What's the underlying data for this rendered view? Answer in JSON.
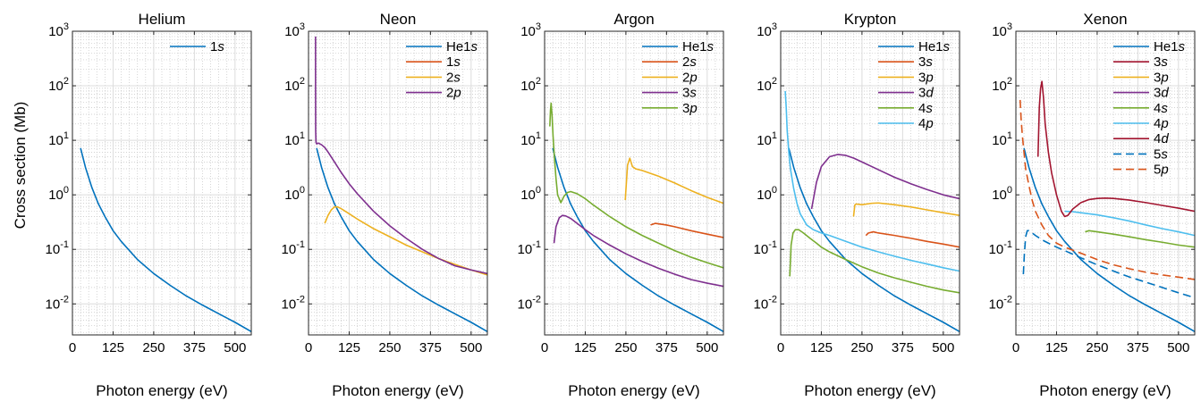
{
  "figure": {
    "ylabel": "Cross section (Mb)"
  },
  "chart_data": [
    {
      "type": "line",
      "title": "Helium",
      "xlabel": "Photon energy (eV)",
      "ylabel": "Cross section (Mb)",
      "yscale": "log",
      "xlim": [
        0,
        550
      ],
      "ylim": [
        0.0027,
        1000
      ],
      "xticks": [
        0,
        125,
        250,
        375,
        500
      ],
      "yticks": [
        0.01,
        0.1,
        1,
        10,
        100,
        1000
      ],
      "ytick_labels": [
        "10^-2",
        "10^-1",
        "10^0",
        "10^1",
        "10^2",
        "10^3"
      ],
      "grid": true,
      "legend": "top-right",
      "series": [
        {
          "name": "1s",
          "legend_base": "1",
          "legend_italic": "s",
          "color": "#0072bd",
          "dash": false,
          "x": [
            25,
            40,
            60,
            80,
            100,
            125,
            150,
            200,
            250,
            300,
            350,
            400,
            450,
            500,
            550
          ],
          "y": [
            7.2,
            3.2,
            1.35,
            0.68,
            0.4,
            0.22,
            0.14,
            0.065,
            0.036,
            0.022,
            0.014,
            0.0095,
            0.0066,
            0.0046,
            0.0031
          ]
        }
      ]
    },
    {
      "type": "line",
      "title": "Neon",
      "xlabel": "Photon energy (eV)",
      "yscale": "log",
      "xlim": [
        0,
        550
      ],
      "ylim": [
        0.0027,
        1000
      ],
      "xticks": [
        0,
        125,
        250,
        375,
        500
      ],
      "yticks": [
        0.01,
        0.1,
        1,
        10,
        100,
        1000
      ],
      "ytick_labels": [
        "10^-2",
        "10^-1",
        "10^0",
        "10^1",
        "10^2",
        "10^3"
      ],
      "grid": true,
      "legend": "top-right",
      "series": [
        {
          "name": "He1s",
          "legend_base": "He1",
          "legend_italic": "s",
          "color": "#0072bd",
          "dash": false,
          "x": [
            25,
            40,
            60,
            80,
            100,
            125,
            150,
            200,
            250,
            300,
            350,
            400,
            450,
            500,
            550
          ],
          "y": [
            7.2,
            3.2,
            1.35,
            0.68,
            0.4,
            0.22,
            0.14,
            0.065,
            0.036,
            0.022,
            0.014,
            0.0095,
            0.0066,
            0.0046,
            0.0031
          ]
        },
        {
          "name": "1s",
          "legend_base": "1",
          "legend_italic": "s",
          "color": "#d95319",
          "dash": false,
          "x": [],
          "y": []
        },
        {
          "name": "2s",
          "legend_base": "2",
          "legend_italic": "s",
          "color": "#edb120",
          "dash": false,
          "x": [
            50,
            60,
            70,
            80,
            90,
            100,
            125,
            150,
            200,
            250,
            300,
            350,
            400,
            450,
            500,
            550
          ],
          "y": [
            0.3,
            0.42,
            0.53,
            0.6,
            0.6,
            0.56,
            0.45,
            0.36,
            0.24,
            0.17,
            0.12,
            0.09,
            0.068,
            0.053,
            0.042,
            0.034
          ]
        },
        {
          "name": "2p",
          "legend_base": "2",
          "legend_italic": "p",
          "color": "#7e2f8e",
          "dash": false,
          "x": [
            21.6,
            21.65,
            22,
            23,
            25,
            30,
            40,
            50,
            60,
            80,
            100,
            125,
            150,
            200,
            250,
            300,
            350,
            400,
            450,
            500,
            550
          ],
          "y": [
            800,
            90,
            15,
            9.2,
            8.6,
            8.9,
            8.3,
            7.4,
            6.1,
            4.0,
            2.6,
            1.6,
            1.05,
            0.5,
            0.27,
            0.16,
            0.1,
            0.068,
            0.05,
            0.042,
            0.036
          ]
        }
      ]
    },
    {
      "type": "line",
      "title": "Argon",
      "xlabel": "Photon energy (eV)",
      "yscale": "log",
      "xlim": [
        0,
        550
      ],
      "ylim": [
        0.0027,
        1000
      ],
      "xticks": [
        0,
        125,
        250,
        375,
        500
      ],
      "yticks": [
        0.01,
        0.1,
        1,
        10,
        100,
        1000
      ],
      "ytick_labels": [
        "10^-2",
        "10^-1",
        "10^0",
        "10^1",
        "10^2",
        "10^3"
      ],
      "grid": true,
      "legend": "top-right",
      "series": [
        {
          "name": "He1s",
          "legend_base": "He1",
          "legend_italic": "s",
          "color": "#0072bd",
          "dash": false,
          "x": [
            25,
            40,
            60,
            80,
            100,
            125,
            150,
            200,
            250,
            300,
            350,
            400,
            450,
            500,
            550
          ],
          "y": [
            7.2,
            3.2,
            1.35,
            0.68,
            0.4,
            0.22,
            0.14,
            0.065,
            0.036,
            0.022,
            0.014,
            0.0095,
            0.0066,
            0.0046,
            0.0031
          ]
        },
        {
          "name": "2s",
          "legend_base": "2",
          "legend_italic": "s",
          "color": "#d95319",
          "dash": false,
          "x": [
            326,
            340,
            375,
            400,
            450,
            500,
            550
          ],
          "y": [
            0.28,
            0.3,
            0.28,
            0.26,
            0.22,
            0.19,
            0.165
          ]
        },
        {
          "name": "2p",
          "legend_base": "2",
          "legend_italic": "p",
          "color": "#edb120",
          "dash": false,
          "x": [
            248,
            255,
            262,
            270,
            280,
            300,
            350,
            400,
            450,
            500,
            550
          ],
          "y": [
            0.8,
            3.5,
            4.7,
            3.3,
            3.0,
            2.8,
            2.2,
            1.65,
            1.2,
            0.9,
            0.7
          ]
        },
        {
          "name": "3s",
          "legend_base": "3",
          "legend_italic": "s",
          "color": "#7e2f8e",
          "dash": false,
          "x": [
            29,
            35,
            45,
            55,
            65,
            80,
            100,
            125,
            150,
            200,
            250,
            300,
            350,
            400,
            450,
            500,
            550
          ],
          "y": [
            0.13,
            0.26,
            0.38,
            0.42,
            0.41,
            0.37,
            0.3,
            0.23,
            0.18,
            0.12,
            0.083,
            0.06,
            0.045,
            0.035,
            0.028,
            0.024,
            0.021
          ]
        },
        {
          "name": "3p",
          "legend_base": "3",
          "legend_italic": "p",
          "color": "#77ac30",
          "dash": false,
          "x": [
            16,
            18,
            20,
            23,
            26,
            30,
            35,
            40,
            50,
            60,
            70,
            80,
            100,
            125,
            150,
            200,
            250,
            300,
            350,
            400,
            450,
            500,
            550
          ],
          "y": [
            18,
            35,
            48,
            28,
            12,
            5,
            2,
            1.0,
            0.72,
            0.95,
            1.1,
            1.15,
            1.05,
            0.85,
            0.65,
            0.4,
            0.26,
            0.18,
            0.13,
            0.095,
            0.072,
            0.057,
            0.046
          ]
        }
      ]
    },
    {
      "type": "line",
      "title": "Krypton",
      "xlabel": "Photon energy (eV)",
      "yscale": "log",
      "xlim": [
        0,
        550
      ],
      "ylim": [
        0.0027,
        1000
      ],
      "xticks": [
        0,
        125,
        250,
        375,
        500
      ],
      "yticks": [
        0.01,
        0.1,
        1,
        10,
        100,
        1000
      ],
      "ytick_labels": [
        "10^-2",
        "10^-1",
        "10^0",
        "10^1",
        "10^2",
        "10^3"
      ],
      "grid": true,
      "legend": "top-right",
      "series": [
        {
          "name": "He1s",
          "legend_base": "He1",
          "legend_italic": "s",
          "color": "#0072bd",
          "dash": false,
          "x": [
            25,
            40,
            60,
            80,
            100,
            125,
            150,
            200,
            250,
            300,
            350,
            400,
            450,
            500,
            550
          ],
          "y": [
            7.2,
            3.2,
            1.35,
            0.68,
            0.4,
            0.22,
            0.14,
            0.065,
            0.036,
            0.022,
            0.014,
            0.0095,
            0.0066,
            0.0046,
            0.0031
          ]
        },
        {
          "name": "3s",
          "legend_base": "3",
          "legend_italic": "s",
          "color": "#d95319",
          "dash": false,
          "x": [
            262,
            270,
            285,
            300,
            350,
            400,
            450,
            500,
            550
          ],
          "y": [
            0.18,
            0.2,
            0.21,
            0.2,
            0.18,
            0.16,
            0.14,
            0.125,
            0.11
          ]
        },
        {
          "name": "3p",
          "legend_base": "3",
          "legend_italic": "p",
          "color": "#edb120",
          "dash": false,
          "x": [
            224,
            228,
            232,
            250,
            280,
            300,
            350,
            400,
            450,
            500,
            550
          ],
          "y": [
            0.4,
            0.65,
            0.68,
            0.66,
            0.7,
            0.71,
            0.66,
            0.6,
            0.53,
            0.47,
            0.42
          ]
        },
        {
          "name": "3d",
          "legend_base": "3",
          "legend_italic": "d",
          "color": "#7e2f8e",
          "dash": false,
          "x": [
            95,
            100,
            110,
            125,
            150,
            175,
            200,
            225,
            250,
            300,
            350,
            400,
            450,
            500,
            550
          ],
          "y": [
            0.55,
            0.8,
            1.7,
            3.3,
            5.0,
            5.5,
            5.3,
            4.7,
            4.0,
            2.9,
            2.1,
            1.6,
            1.25,
            1.0,
            0.85
          ]
        },
        {
          "name": "4s",
          "legend_base": "4",
          "legend_italic": "s",
          "color": "#77ac30",
          "dash": false,
          "x": [
            28,
            32,
            38,
            45,
            55,
            70,
            90,
            110,
            125,
            150,
            200,
            250,
            300,
            350,
            400,
            450,
            500,
            550
          ],
          "y": [
            0.032,
            0.12,
            0.2,
            0.23,
            0.23,
            0.2,
            0.16,
            0.13,
            0.11,
            0.09,
            0.065,
            0.048,
            0.037,
            0.03,
            0.025,
            0.021,
            0.018,
            0.016
          ]
        },
        {
          "name": "4p",
          "legend_base": "4",
          "legend_italic": "p",
          "color": "#4dbeee",
          "dash": false,
          "x": [
            14,
            17,
            20,
            25,
            30,
            40,
            50,
            60,
            80,
            100,
            125,
            150,
            200,
            250,
            300,
            350,
            400,
            450,
            500,
            550
          ],
          "y": [
            80,
            40,
            15,
            6,
            3,
            1.3,
            0.7,
            0.45,
            0.28,
            0.23,
            0.2,
            0.18,
            0.14,
            0.11,
            0.09,
            0.075,
            0.063,
            0.054,
            0.046,
            0.04
          ]
        }
      ]
    },
    {
      "type": "line",
      "title": "Xenon",
      "xlabel": "Photon energy (eV)",
      "yscale": "log",
      "xlim": [
        0,
        550
      ],
      "ylim": [
        0.0027,
        1000
      ],
      "xticks": [
        0,
        125,
        250,
        375,
        500
      ],
      "yticks": [
        0.01,
        0.1,
        1,
        10,
        100,
        1000
      ],
      "ytick_labels": [
        "10^-2",
        "10^-1",
        "10^0",
        "10^1",
        "10^2",
        "10^3"
      ],
      "grid": true,
      "legend": "top-right",
      "series": [
        {
          "name": "He1s",
          "legend_base": "He1",
          "legend_italic": "s",
          "color": "#0072bd",
          "dash": false,
          "x": [
            25,
            40,
            60,
            80,
            100,
            125,
            150,
            200,
            250,
            300,
            350,
            400,
            450,
            500,
            550
          ],
          "y": [
            7.2,
            3.2,
            1.35,
            0.68,
            0.4,
            0.22,
            0.14,
            0.065,
            0.036,
            0.022,
            0.014,
            0.0095,
            0.0066,
            0.0046,
            0.0031
          ]
        },
        {
          "name": "3s",
          "legend_base": "3",
          "legend_italic": "s",
          "color": "#a2142f",
          "dash": false,
          "x": [],
          "y": []
        },
        {
          "name": "3p",
          "legend_base": "3",
          "legend_italic": "p",
          "color": "#edb120",
          "dash": false,
          "x": [],
          "y": []
        },
        {
          "name": "3d",
          "legend_base": "3",
          "legend_italic": "d",
          "color": "#7e2f8e",
          "dash": false,
          "x": [],
          "y": []
        },
        {
          "name": "4s",
          "legend_base": "4",
          "legend_italic": "s",
          "color": "#77ac30",
          "dash": false,
          "x": [
            213,
            225,
            250,
            300,
            350,
            400,
            450,
            500,
            550
          ],
          "y": [
            0.21,
            0.22,
            0.21,
            0.19,
            0.17,
            0.15,
            0.135,
            0.12,
            0.11
          ]
        },
        {
          "name": "4p",
          "legend_base": "4",
          "legend_italic": "p",
          "color": "#4dbeee",
          "dash": false,
          "x": [
            150,
            175,
            200,
            250,
            300,
            350,
            400,
            450,
            500,
            550
          ],
          "y": [
            0.5,
            0.49,
            0.47,
            0.43,
            0.38,
            0.33,
            0.28,
            0.24,
            0.21,
            0.18
          ]
        },
        {
          "name": "4d",
          "legend_base": "4",
          "legend_italic": "d",
          "color": "#a2142f",
          "dash": false,
          "x": [
            68,
            72,
            76,
            80,
            85,
            90,
            100,
            110,
            125,
            140,
            150,
            160,
            175,
            200,
            225,
            250,
            275,
            300,
            350,
            400,
            450,
            500,
            550
          ],
          "y": [
            5,
            40,
            90,
            120,
            60,
            20,
            6,
            2.5,
            1.0,
            0.5,
            0.4,
            0.42,
            0.55,
            0.72,
            0.82,
            0.86,
            0.87,
            0.86,
            0.8,
            0.72,
            0.64,
            0.57,
            0.5
          ]
        },
        {
          "name": "5s",
          "legend_base": "5",
          "legend_italic": "s",
          "color": "#0072bd",
          "dash": true,
          "x": [
            23,
            26,
            30,
            35,
            40,
            50,
            60,
            80,
            100,
            125,
            150,
            200,
            250,
            300,
            350,
            400,
            450,
            500,
            550
          ],
          "y": [
            0.035,
            0.08,
            0.17,
            0.22,
            0.22,
            0.2,
            0.18,
            0.15,
            0.13,
            0.11,
            0.095,
            0.07,
            0.052,
            0.04,
            0.031,
            0.025,
            0.02,
            0.016,
            0.013
          ]
        },
        {
          "name": "5p",
          "legend_base": "5",
          "legend_italic": "p",
          "color": "#d95319",
          "dash": true,
          "x": [
            13,
            16,
            20,
            25,
            30,
            40,
            50,
            60,
            80,
            100,
            125,
            150,
            200,
            250,
            300,
            350,
            400,
            450,
            500,
            550
          ],
          "y": [
            55,
            25,
            12,
            6,
            3,
            1.5,
            0.8,
            0.5,
            0.28,
            0.18,
            0.13,
            0.11,
            0.085,
            0.065,
            0.052,
            0.044,
            0.038,
            0.034,
            0.031,
            0.028
          ]
        }
      ]
    }
  ]
}
